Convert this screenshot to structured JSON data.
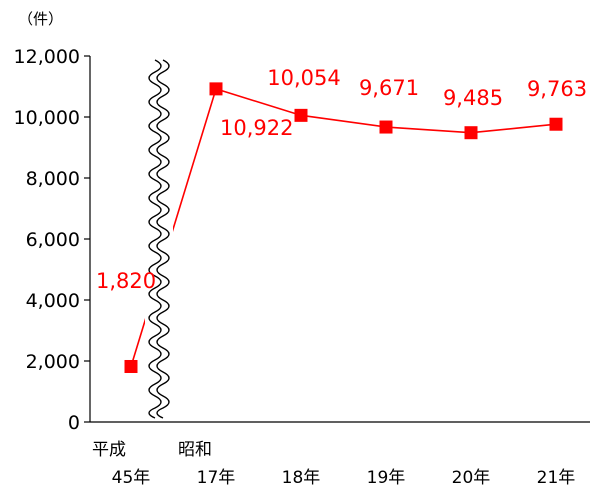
{
  "chart_data": {
    "type": "line",
    "unit": "（件）",
    "categories": [
      {
        "era": "平成",
        "year": "45年"
      },
      {
        "era": "昭和",
        "year": "17年"
      },
      {
        "era": "",
        "year": "18年"
      },
      {
        "era": "",
        "year": "19年"
      },
      {
        "era": "",
        "year": "20年"
      },
      {
        "era": "",
        "year": "21年"
      }
    ],
    "values": [
      1820,
      10922,
      10054,
      9671,
      9485,
      9763
    ],
    "value_labels": [
      "1,820",
      "10,922",
      "10,054",
      "9,671",
      "9,485",
      "9,763"
    ],
    "ylim": [
      0,
      12000
    ],
    "yticks": [
      0,
      2000,
      4000,
      6000,
      8000,
      10000,
      12000
    ],
    "ytick_labels": [
      "0",
      "2,000",
      "4,000",
      "6,000",
      "8,000",
      "10,000",
      "12,000"
    ],
    "axis_break": "between first and second category",
    "grid": false,
    "legend": "none",
    "colors": {
      "series": "#ff0000",
      "axis": "#000000"
    }
  }
}
